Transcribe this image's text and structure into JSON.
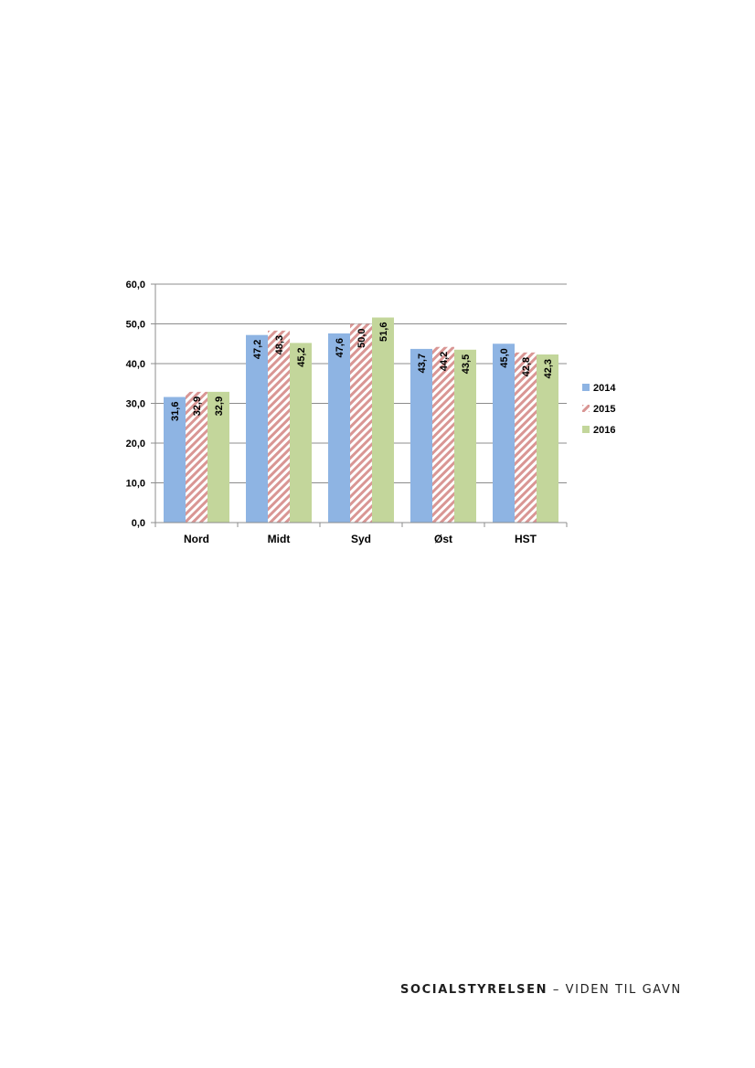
{
  "chart_data": {
    "type": "bar",
    "categories": [
      "Nord",
      "Midt",
      "Syd",
      "Øst",
      "HST"
    ],
    "series": [
      {
        "name": "2014",
        "values": [
          31.6,
          47.2,
          47.6,
          43.7,
          45.0
        ],
        "labels": [
          "31,6",
          "47,2",
          "47,6",
          "43,7",
          "45,0"
        ],
        "color": "#8eb4e3",
        "pattern": "solid"
      },
      {
        "name": "2015",
        "values": [
          32.9,
          48.3,
          50.0,
          44.2,
          42.8
        ],
        "labels": [
          "32,9",
          "48,3",
          "50,0",
          "44,2",
          "42,8"
        ],
        "color": "#d99694",
        "pattern": "diagonal-hatch"
      },
      {
        "name": "2016",
        "values": [
          32.9,
          45.2,
          51.6,
          43.5,
          42.3
        ],
        "labels": [
          "32,9",
          "45,2",
          "51,6",
          "43,5",
          "42,3"
        ],
        "color": "#c3d69b",
        "pattern": "solid"
      }
    ],
    "ylim": [
      0,
      60
    ],
    "yticks": [
      "0,0",
      "10,0",
      "20,0",
      "30,0",
      "40,0",
      "50,0",
      "60,0"
    ],
    "grid": true,
    "legend": "right",
    "title": "",
    "xlabel": "",
    "ylabel": ""
  },
  "footer": {
    "brand": "SOCIALSTYRELSEN",
    "separator": "–",
    "tagline": "VIDEN TIL GAVN"
  }
}
